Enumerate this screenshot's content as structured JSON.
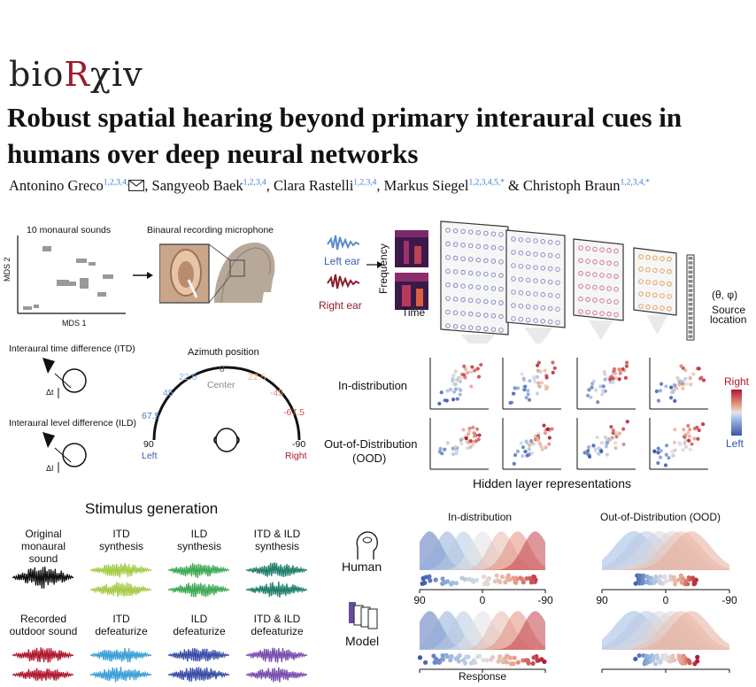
{
  "header": {
    "logo_prefix": "bio",
    "logo_accent": "R",
    "logo_suffix": "χiv",
    "title": "Robust spatial hearing beyond primary interaural cues in humans over deep neural networks"
  },
  "authors": [
    {
      "name": "Antonino Greco",
      "sup": "1,2,3,4,"
    },
    {
      "name": "Sangyeob Baek",
      "sup": "1,2,3,4"
    },
    {
      "name": "Clara Rastelli",
      "sup": "1,2,3,4"
    },
    {
      "name": "Markus Siegel",
      "sup": "1,2,3,4,5,*"
    },
    {
      "name": "Christoph Braun",
      "sup": "1,2,3,4,*"
    }
  ],
  "authors_sep": {
    "comma": ", ",
    "amp": " & "
  },
  "icons": [
    "mail-icon",
    "ear-photo",
    "head-icon",
    "brain-icon"
  ],
  "panel_sounds": {
    "title": "10 monaural sounds",
    "ylabel": "MDS 2",
    "xlabel": "MDS 1",
    "mic_title": "Binaural recording microphone"
  },
  "panel_cues": {
    "itd": "Interaural time difference (ITD)",
    "ild": "Interaural level difference (ILD)",
    "dt": "Δt",
    "di": "ΔI",
    "azimuth_title": "Azimuth position",
    "center": "Center",
    "left": "Left",
    "right": "Right",
    "ticks_left": [
      "90",
      "67.5",
      "45",
      "22.5"
    ],
    "tick_zero": "0",
    "ticks_right": [
      "22.5",
      "-45",
      "-67.5",
      "-90"
    ]
  },
  "panel_network": {
    "left_ear": "Left ear",
    "right_ear": "Right ear",
    "frequency": "Frequency",
    "time": "Time",
    "theta_phi": "(θ, φ)",
    "source": "Source",
    "location": "location"
  },
  "panel_hidden": {
    "in_dist": "In-distribution",
    "ood_1": "Out-of-Distribution",
    "ood_2": "(OOD)",
    "caption": "Hidden layer representations",
    "cbar_top": "Right",
    "cbar_bottom": "Left"
  },
  "panel_stimulus": {
    "title": "Stimulus generation",
    "row1": [
      {
        "l1": "Original",
        "l2": "monaural sound",
        "color": "#111111",
        "double": false
      },
      {
        "l1": "ITD",
        "l2": "synthesis",
        "color": "#a6cc4a",
        "double": true
      },
      {
        "l1": "ILD",
        "l2": "synthesis",
        "color": "#3daa55",
        "double": true
      },
      {
        "l1": "ITD & ILD",
        "l2": "synthesis",
        "color": "#1f7f6a",
        "double": true
      }
    ],
    "row2": [
      {
        "l1": "Recorded",
        "l2": "outdoor sound",
        "color": "#b0182e",
        "double": true
      },
      {
        "l1": "ITD",
        "l2": "defeaturize",
        "color": "#3b9fd8",
        "double": true
      },
      {
        "l1": "ILD",
        "l2": "defeaturize",
        "color": "#3a4ea8",
        "double": true
      },
      {
        "l1": "ITD & ILD",
        "l2": "defeaturize",
        "color": "#7a4fb0",
        "double": true
      }
    ]
  },
  "panel_response": {
    "col_in": "In-distribution",
    "col_ood": "Out-of-Distribution (OOD)",
    "human": "Human",
    "model": "Model",
    "ticks": [
      "90",
      "0",
      "-90"
    ],
    "xlabel": "Response"
  }
}
